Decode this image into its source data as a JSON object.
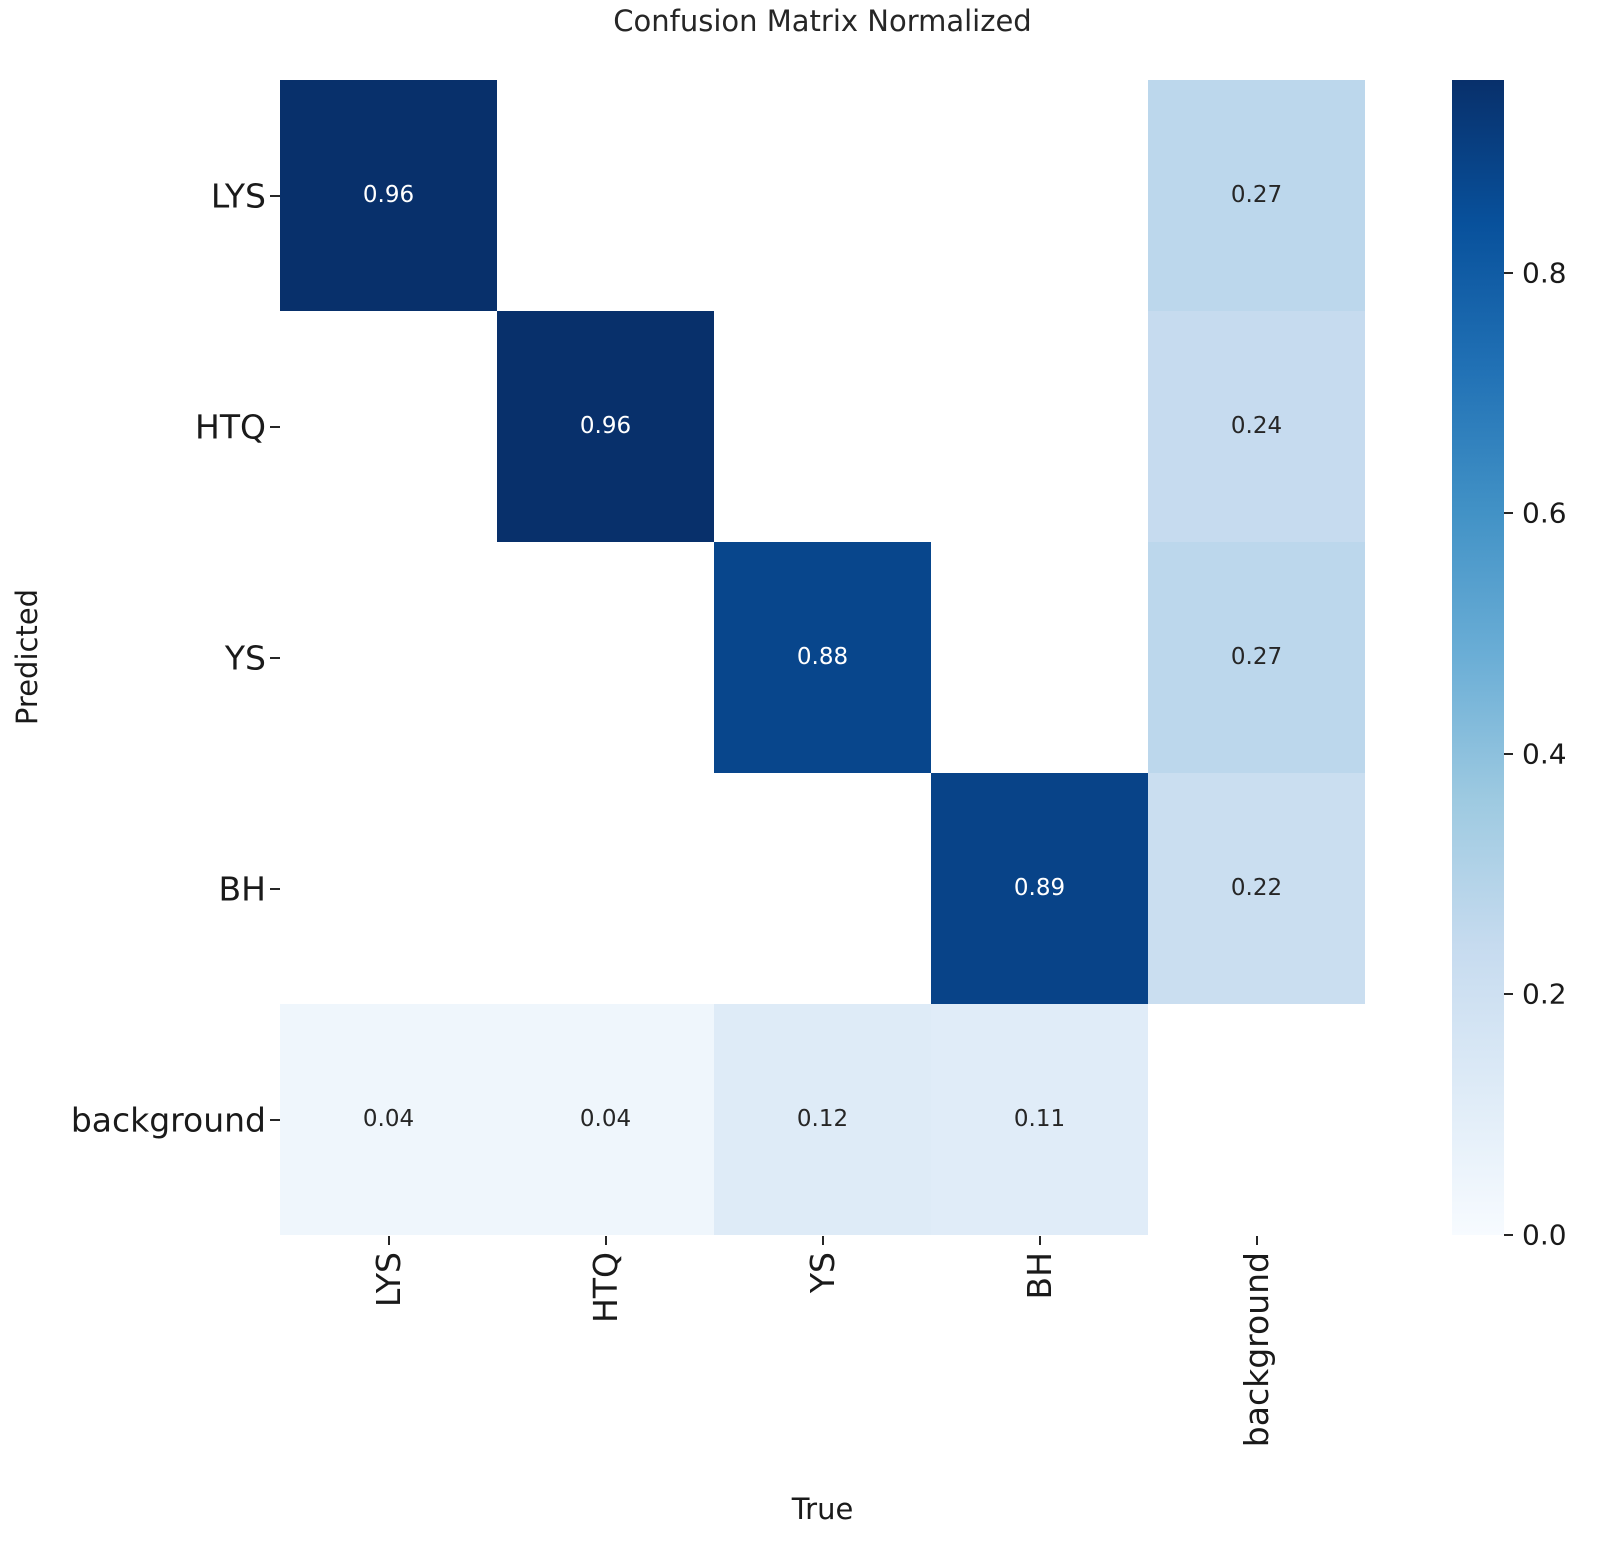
{
  "chart_data": {
    "type": "heatmap",
    "title": "Confusion Matrix Normalized",
    "xlabel": "True",
    "ylabel": "Predicted",
    "x_categories": [
      "LYS",
      "HTQ",
      "YS",
      "BH",
      "background"
    ],
    "y_categories": [
      "LYS",
      "HTQ",
      "YS",
      "BH",
      "background"
    ],
    "values": [
      [
        0.96,
        null,
        null,
        null,
        0.27
      ],
      [
        null,
        0.96,
        null,
        null,
        0.24
      ],
      [
        null,
        null,
        0.88,
        null,
        0.27
      ],
      [
        null,
        null,
        null,
        0.89,
        0.22
      ],
      [
        0.04,
        0.04,
        0.12,
        0.11,
        null
      ]
    ],
    "empty_cell_color": "#ffffff",
    "colormap": "Blues",
    "colormap_stops": [
      "#f7fbff",
      "#deebf7",
      "#c6dbef",
      "#9ecae1",
      "#6baed6",
      "#4292c6",
      "#2171b5",
      "#08519c",
      "#08306b"
    ],
    "vmin": 0.0,
    "vmax": 0.96,
    "annotation_color_dark_cells": "#ffffff",
    "annotation_color_light_cells": "#262626",
    "colorbar_ticks": [
      "0.0",
      "0.2",
      "0.4",
      "0.6",
      "0.8"
    ],
    "colorbar_tick_values": [
      0.0,
      0.2,
      0.4,
      0.6,
      0.8
    ],
    "legend_position": "right",
    "grid": false
  }
}
